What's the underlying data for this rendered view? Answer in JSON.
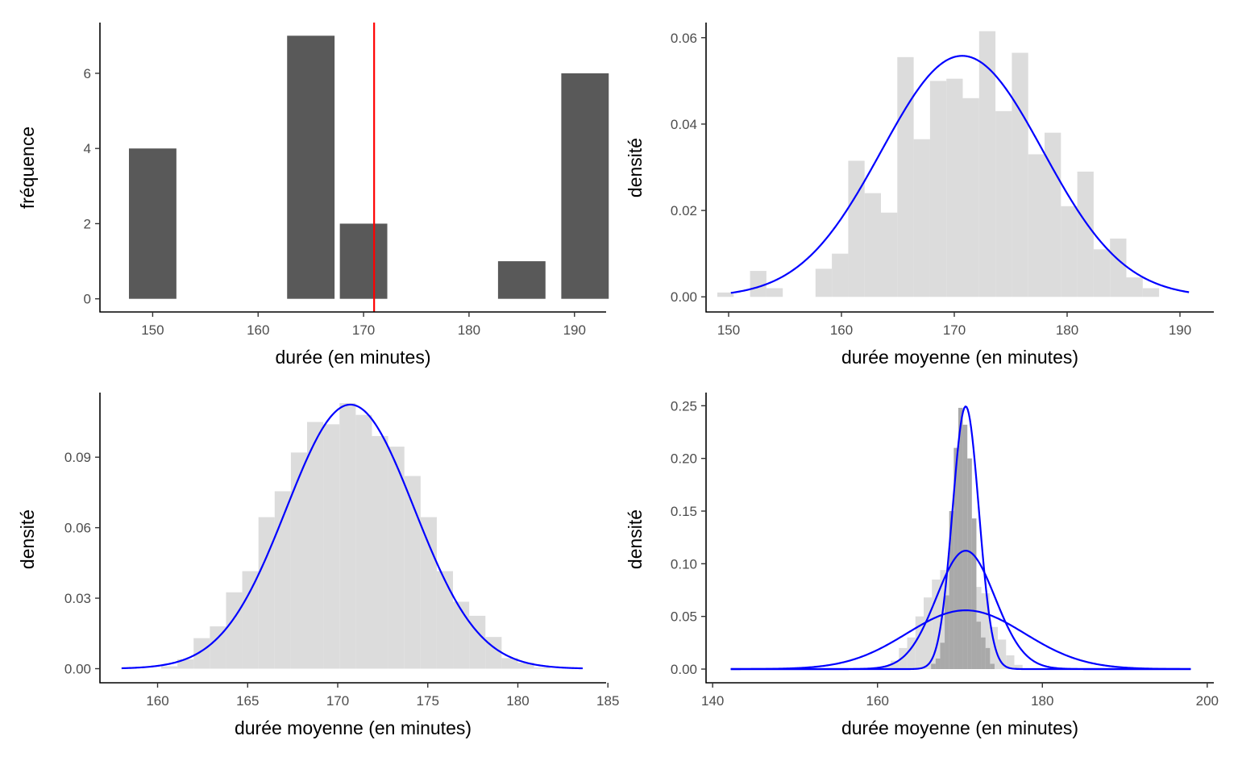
{
  "colors": {
    "bar_dark": "#595959",
    "bar_light": "#dcdcdc",
    "bar_medium": "#a9a9a9",
    "curve": "#0000ff",
    "vline": "#ff0000",
    "axis": "#000000",
    "tick_text": "#4d4d4d"
  },
  "chart_data": [
    {
      "type": "bar",
      "xlabel": "durée (en minutes)",
      "ylabel": "fréquence",
      "xlim": [
        145,
        193
      ],
      "ylim": [
        -0.35,
        7.35
      ],
      "xticks": [
        150,
        160,
        170,
        180,
        190
      ],
      "yticks": [
        0,
        2,
        4,
        6
      ],
      "bar_width": 4.5,
      "bars": [
        {
          "x": 150,
          "value": 4
        },
        {
          "x": 165,
          "value": 7
        },
        {
          "x": 170,
          "value": 2
        },
        {
          "x": 185,
          "value": 1
        },
        {
          "x": 191,
          "value": 6
        }
      ],
      "vline": 171,
      "grid": false
    },
    {
      "type": "histogram",
      "xlabel": "durée moyenne (en minutes)",
      "ylabel": "densité",
      "xlim": [
        148,
        193
      ],
      "ylim": [
        -0.0035,
        0.0635
      ],
      "xticks": [
        150,
        160,
        170,
        180,
        190
      ],
      "yticks": [
        0.0,
        0.02,
        0.04,
        0.06
      ],
      "bin_start": 149.0,
      "bin_width": 1.45,
      "density": [
        0.001,
        0.0,
        0.006,
        0.002,
        0.0,
        0.0,
        0.0065,
        0.01,
        0.0315,
        0.024,
        0.0195,
        0.0555,
        0.0365,
        0.05,
        0.0505,
        0.046,
        0.0615,
        0.043,
        0.0565,
        0.033,
        0.038,
        0.021,
        0.029,
        0.011,
        0.0135,
        0.0045,
        0.002,
        0.0
      ],
      "fill": "light",
      "curves": [
        {
          "mean": 170.7,
          "sd": 7.15,
          "x_range": [
            150.2,
            190.8
          ]
        }
      ],
      "grid": false
    },
    {
      "type": "histogram",
      "xlabel": "durée moyenne (en minutes)",
      "ylabel": "densité",
      "xlim": [
        156.8,
        184.9
      ],
      "ylim": [
        -0.006,
        0.1175
      ],
      "xticks": [
        160,
        165,
        170,
        175,
        180,
        185
      ],
      "yticks": [
        0.0,
        0.03,
        0.06,
        0.09
      ],
      "bin_start": 160.2,
      "bin_width": 0.9,
      "density": [
        0.001,
        0.004,
        0.013,
        0.018,
        0.0325,
        0.0415,
        0.0645,
        0.0755,
        0.092,
        0.105,
        0.104,
        0.113,
        0.108,
        0.099,
        0.0945,
        0.082,
        0.0645,
        0.0415,
        0.0285,
        0.0225,
        0.0135,
        0.0045,
        0.0025,
        0.0005
      ],
      "fill": "light",
      "curves": [
        {
          "mean": 170.7,
          "sd": 3.55,
          "x_range": [
            158.0,
            183.6
          ]
        }
      ],
      "grid": false
    },
    {
      "type": "histogram",
      "xlabel": "durée moyenne (en minutes)",
      "ylabel": "densité",
      "xlim": [
        139.2,
        200.8
      ],
      "ylim": [
        -0.013,
        0.2625
      ],
      "xticks": [
        140,
        160,
        180,
        200
      ],
      "yticks": [
        0.0,
        0.05,
        0.1,
        0.15,
        0.2,
        0.25
      ],
      "histograms": [
        {
          "fill": "light",
          "bin_start": 160.6,
          "bin_width": 1.0,
          "density": [
            0.003,
            0.008,
            0.02,
            0.03,
            0.05,
            0.068,
            0.085,
            0.094,
            0.11,
            0.112,
            0.106,
            0.078,
            0.072,
            0.04,
            0.028,
            0.013,
            0.004
          ]
        },
        {
          "fill": "medium",
          "bin_start": 166.5,
          "bin_width": 0.55,
          "density": [
            0.005,
            0.01,
            0.025,
            0.07,
            0.15,
            0.21,
            0.248,
            0.232,
            0.2,
            0.143,
            0.045,
            0.03,
            0.02,
            0.005
          ]
        }
      ],
      "curves": [
        {
          "mean": 170.7,
          "sd": 7.15,
          "x_range": [
            142.2,
            198.0
          ]
        },
        {
          "mean": 170.7,
          "sd": 3.55,
          "x_range": [
            142.2,
            198.0
          ]
        },
        {
          "mean": 170.7,
          "sd": 1.6,
          "x_range": [
            142.2,
            198.0
          ]
        }
      ],
      "grid": false
    }
  ]
}
